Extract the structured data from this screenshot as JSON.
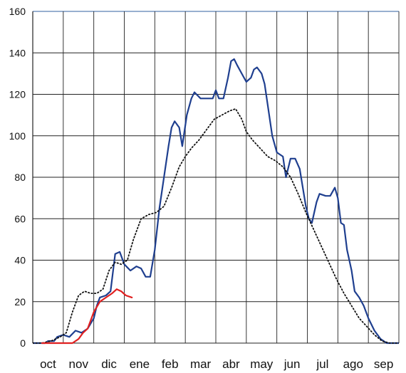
{
  "chart_data": {
    "type": "line",
    "title": "",
    "xlabel": "",
    "ylabel": "",
    "categories": [
      "oct",
      "nov",
      "dic",
      "ene",
      "feb",
      "mar",
      "abr",
      "may",
      "jun",
      "jul",
      "ago",
      "sep"
    ],
    "x_range": [
      0,
      12
    ],
    "ylim": [
      0,
      160
    ],
    "yticks": [
      0,
      20,
      40,
      60,
      80,
      100,
      120,
      140,
      160
    ],
    "grid": true,
    "legend": "none",
    "series": [
      {
        "style": "solid",
        "color": "#1f3f8f",
        "points": [
          [
            0,
            0
          ],
          [
            0.4,
            0
          ],
          [
            0.5,
            1
          ],
          [
            0.7,
            1
          ],
          [
            0.8,
            3
          ],
          [
            1.0,
            4
          ],
          [
            1.2,
            3
          ],
          [
            1.4,
            6
          ],
          [
            1.6,
            5
          ],
          [
            1.8,
            7
          ],
          [
            2.0,
            12
          ],
          [
            2.1,
            18
          ],
          [
            2.2,
            22
          ],
          [
            2.4,
            23
          ],
          [
            2.55,
            25
          ],
          [
            2.7,
            43
          ],
          [
            2.85,
            44
          ],
          [
            3.0,
            38
          ],
          [
            3.2,
            35
          ],
          [
            3.4,
            37
          ],
          [
            3.55,
            36
          ],
          [
            3.7,
            32
          ],
          [
            3.85,
            32
          ],
          [
            4.0,
            45
          ],
          [
            4.15,
            65
          ],
          [
            4.3,
            80
          ],
          [
            4.45,
            95
          ],
          [
            4.55,
            104
          ],
          [
            4.65,
            107
          ],
          [
            4.8,
            104
          ],
          [
            4.9,
            95
          ],
          [
            5.05,
            110
          ],
          [
            5.2,
            118
          ],
          [
            5.3,
            121
          ],
          [
            5.5,
            118
          ],
          [
            5.7,
            118
          ],
          [
            5.9,
            118
          ],
          [
            6.0,
            122
          ],
          [
            6.1,
            118
          ],
          [
            6.25,
            118
          ],
          [
            6.4,
            128
          ],
          [
            6.5,
            136
          ],
          [
            6.6,
            137
          ],
          [
            6.7,
            134
          ],
          [
            6.85,
            130
          ],
          [
            7.0,
            126
          ],
          [
            7.15,
            128
          ],
          [
            7.25,
            132
          ],
          [
            7.35,
            133
          ],
          [
            7.5,
            130
          ],
          [
            7.6,
            125
          ],
          [
            7.7,
            115
          ],
          [
            7.85,
            100
          ],
          [
            8.0,
            92
          ],
          [
            8.1,
            91
          ],
          [
            8.2,
            90
          ],
          [
            8.3,
            80
          ],
          [
            8.45,
            89
          ],
          [
            8.6,
            89
          ],
          [
            8.75,
            84
          ],
          [
            8.85,
            75
          ],
          [
            8.95,
            66
          ],
          [
            9.05,
            60
          ],
          [
            9.15,
            58
          ],
          [
            9.3,
            68
          ],
          [
            9.4,
            72
          ],
          [
            9.6,
            71
          ],
          [
            9.75,
            71
          ],
          [
            9.9,
            75
          ],
          [
            10.0,
            70
          ],
          [
            10.1,
            58
          ],
          [
            10.2,
            57
          ],
          [
            10.3,
            45
          ],
          [
            10.45,
            35
          ],
          [
            10.55,
            25
          ],
          [
            10.7,
            22
          ],
          [
            10.85,
            18
          ],
          [
            11.0,
            12
          ],
          [
            11.2,
            6
          ],
          [
            11.4,
            2
          ],
          [
            11.6,
            0
          ],
          [
            14,
            0
          ]
        ]
      },
      {
        "style": "dotted",
        "color": "#111111",
        "points": [
          [
            0,
            0
          ],
          [
            0.3,
            0
          ],
          [
            0.6,
            1
          ],
          [
            0.9,
            3
          ],
          [
            1.1,
            5
          ],
          [
            1.3,
            15
          ],
          [
            1.5,
            23
          ],
          [
            1.7,
            25
          ],
          [
            1.9,
            24
          ],
          [
            2.1,
            24
          ],
          [
            2.3,
            26
          ],
          [
            2.5,
            35
          ],
          [
            2.7,
            39
          ],
          [
            2.9,
            38
          ],
          [
            3.1,
            40
          ],
          [
            3.3,
            50
          ],
          [
            3.55,
            60
          ],
          [
            3.8,
            62
          ],
          [
            4.05,
            63
          ],
          [
            4.3,
            66
          ],
          [
            4.55,
            75
          ],
          [
            4.8,
            85
          ],
          [
            5.0,
            90
          ],
          [
            5.2,
            94
          ],
          [
            5.45,
            98
          ],
          [
            5.7,
            103
          ],
          [
            5.95,
            108
          ],
          [
            6.2,
            110
          ],
          [
            6.45,
            112
          ],
          [
            6.65,
            113
          ],
          [
            6.85,
            108
          ],
          [
            7.0,
            102
          ],
          [
            7.2,
            98
          ],
          [
            7.45,
            94
          ],
          [
            7.7,
            90
          ],
          [
            7.95,
            88
          ],
          [
            8.2,
            85
          ],
          [
            8.45,
            80
          ],
          [
            8.7,
            72
          ],
          [
            8.95,
            63
          ],
          [
            9.2,
            55
          ],
          [
            9.45,
            47
          ],
          [
            9.7,
            39
          ],
          [
            9.95,
            31
          ],
          [
            10.2,
            24
          ],
          [
            10.45,
            18
          ],
          [
            10.7,
            12
          ],
          [
            10.95,
            8
          ],
          [
            11.2,
            4
          ],
          [
            11.45,
            1
          ],
          [
            11.7,
            0
          ],
          [
            14,
            0
          ]
        ]
      },
      {
        "style": "solid",
        "color": "#e02020",
        "points": [
          [
            0.3,
            0
          ],
          [
            1.3,
            0
          ],
          [
            1.5,
            2
          ],
          [
            1.65,
            5
          ],
          [
            1.8,
            7
          ],
          [
            2.0,
            15
          ],
          [
            2.2,
            20
          ],
          [
            2.4,
            22
          ],
          [
            2.6,
            24
          ],
          [
            2.75,
            26
          ],
          [
            2.9,
            25
          ],
          [
            3.05,
            23
          ],
          [
            3.25,
            22
          ]
        ]
      }
    ]
  }
}
